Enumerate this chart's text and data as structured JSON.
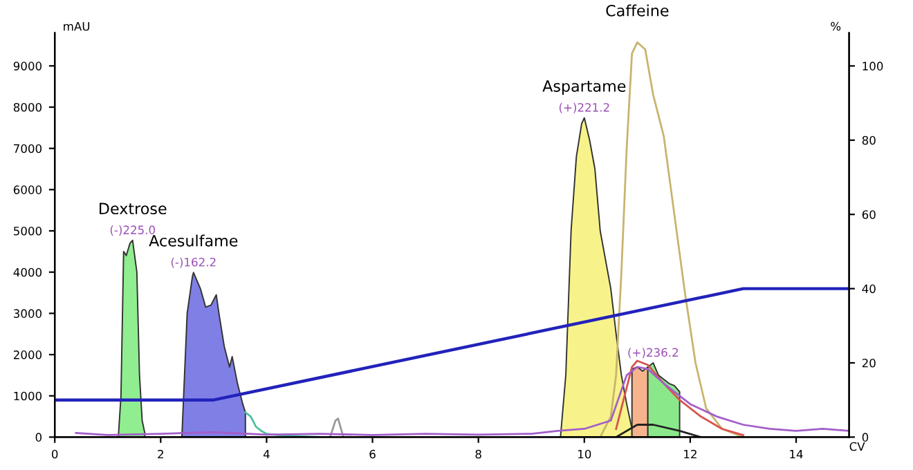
{
  "chart_data": {
    "type": "line",
    "xlabel": "CV",
    "ylabel": "mAU",
    "y2label": "%",
    "xlim": [
      0,
      15
    ],
    "xticks": [
      0,
      2,
      4,
      6,
      8,
      10,
      12,
      14
    ],
    "ylim": [
      0,
      9800
    ],
    "yticks": [
      0,
      1000,
      2000,
      3000,
      4000,
      5000,
      6000,
      7000,
      8000,
      9000
    ],
    "y2lim": [
      0,
      108.9
    ],
    "y2ticks": [
      0,
      20,
      40,
      60,
      80,
      100
    ],
    "grid": false,
    "legend": false,
    "marker": "none",
    "line_style": "solid",
    "series": [
      {
        "type": "area",
        "color": "#90ee90",
        "x": [
          1.2,
          1.25,
          1.3,
          1.35,
          1.42,
          1.47,
          1.55,
          1.6,
          1.65,
          1.7
        ],
        "values": [
          0,
          1000,
          4500,
          4400,
          4700,
          4770,
          4000,
          1500,
          400,
          100
        ]
      },
      {
        "type": "area",
        "color": "#7f7fe6",
        "x": [
          2.4,
          2.45,
          2.5,
          2.6,
          2.62,
          2.75,
          2.85,
          2.95,
          3.05,
          3.1,
          3.2,
          3.3,
          3.35,
          3.45,
          3.55,
          3.6
        ],
        "values": [
          0,
          1500,
          3000,
          3900,
          3990,
          3600,
          3150,
          3200,
          3450,
          3000,
          2200,
          1700,
          1950,
          1300,
          800,
          600
        ]
      },
      {
        "color": "#4dbfa0",
        "x": [
          3.6,
          3.7,
          3.8,
          3.9,
          4.0,
          4.2,
          4.5,
          5.0
        ],
        "values": [
          600,
          500,
          250,
          150,
          80,
          50,
          30,
          0
        ]
      },
      {
        "color": "#999999",
        "x": [
          5.2,
          5.3,
          5.35,
          5.45
        ],
        "values": [
          0,
          400,
          450,
          0
        ]
      },
      {
        "type": "area",
        "color": "#f7f38a",
        "x": [
          9.55,
          9.65,
          9.75,
          9.85,
          9.95,
          10.0,
          10.1,
          10.2,
          10.3,
          10.4,
          10.5,
          10.6,
          10.7,
          10.8,
          10.9
        ],
        "values": [
          0,
          1500,
          5000,
          6800,
          7600,
          7740,
          7200,
          6500,
          5000,
          4300,
          3600,
          2500,
          1500,
          800,
          200
        ]
      },
      {
        "type": "area",
        "color": "#f7b48c",
        "x": [
          10.9,
          11.0,
          11.1,
          11.2
        ],
        "values": [
          1650,
          1700,
          1600,
          1700
        ]
      },
      {
        "type": "area",
        "color": "#8ae88a",
        "x": [
          11.2,
          11.3,
          11.4,
          11.5,
          11.6,
          11.7,
          11.8
        ],
        "values": [
          1700,
          1800,
          1500,
          1400,
          1300,
          1250,
          1100
        ]
      },
      {
        "color": "#c8b46e",
        "x": [
          10.3,
          10.5,
          10.6,
          10.7,
          10.8,
          10.9,
          11.0,
          11.15,
          11.3,
          11.5,
          11.7,
          11.9,
          12.1,
          12.3,
          12.6,
          13.0
        ],
        "values": [
          0,
          500,
          1500,
          4000,
          7000,
          9300,
          9570,
          9400,
          8300,
          7300,
          5400,
          3500,
          1800,
          700,
          200,
          0
        ]
      },
      {
        "color": "#d9534f",
        "x": [
          10.6,
          10.8,
          10.9,
          11.0,
          11.2,
          11.5,
          11.8,
          12.2,
          12.6,
          13.0
        ],
        "values": [
          200,
          1200,
          1700,
          1850,
          1750,
          1300,
          900,
          500,
          200,
          50
        ]
      },
      {
        "color": "#a35ec9",
        "x": [
          0.4,
          1,
          2,
          3,
          4,
          5,
          6,
          7,
          8,
          9,
          9.5,
          10,
          10.5,
          10.8,
          11.0,
          11.2,
          11.5,
          12,
          12.5,
          13,
          13.5,
          14,
          14.5,
          15
        ],
        "values": [
          100,
          50,
          80,
          120,
          60,
          80,
          50,
          80,
          60,
          80,
          150,
          200,
          400,
          1500,
          1700,
          1650,
          1300,
          800,
          500,
          300,
          200,
          150,
          200,
          150
        ]
      },
      {
        "color": "#222222",
        "x": [
          10.6,
          11.0,
          11.3,
          11.8,
          12.2
        ],
        "values": [
          0,
          300,
          300,
          150,
          0
        ]
      },
      {
        "axis": "y2",
        "color": "#2222bb",
        "x": [
          0,
          3,
          13,
          15
        ],
        "values": [
          10,
          10,
          40,
          40
        ]
      }
    ],
    "annotations": [
      {
        "text": "Dextrose",
        "x": 1.47,
        "y": 4770
      },
      {
        "text": "(-)225.0",
        "x": 1.47,
        "y": 4770
      },
      {
        "text": "Acesulfame",
        "x": 2.62,
        "y": 3990
      },
      {
        "text": "(-)162.2",
        "x": 2.62,
        "y": 3990
      },
      {
        "text": "Aspartame",
        "x": 10.0,
        "y": 7740
      },
      {
        "text": "(+)221.2",
        "x": 10.0,
        "y": 7740
      },
      {
        "text": "Caffeine",
        "x": 11.0,
        "y": 9570
      },
      {
        "text": "(+)236.2",
        "x": 11.3,
        "y": 1800
      }
    ]
  }
}
